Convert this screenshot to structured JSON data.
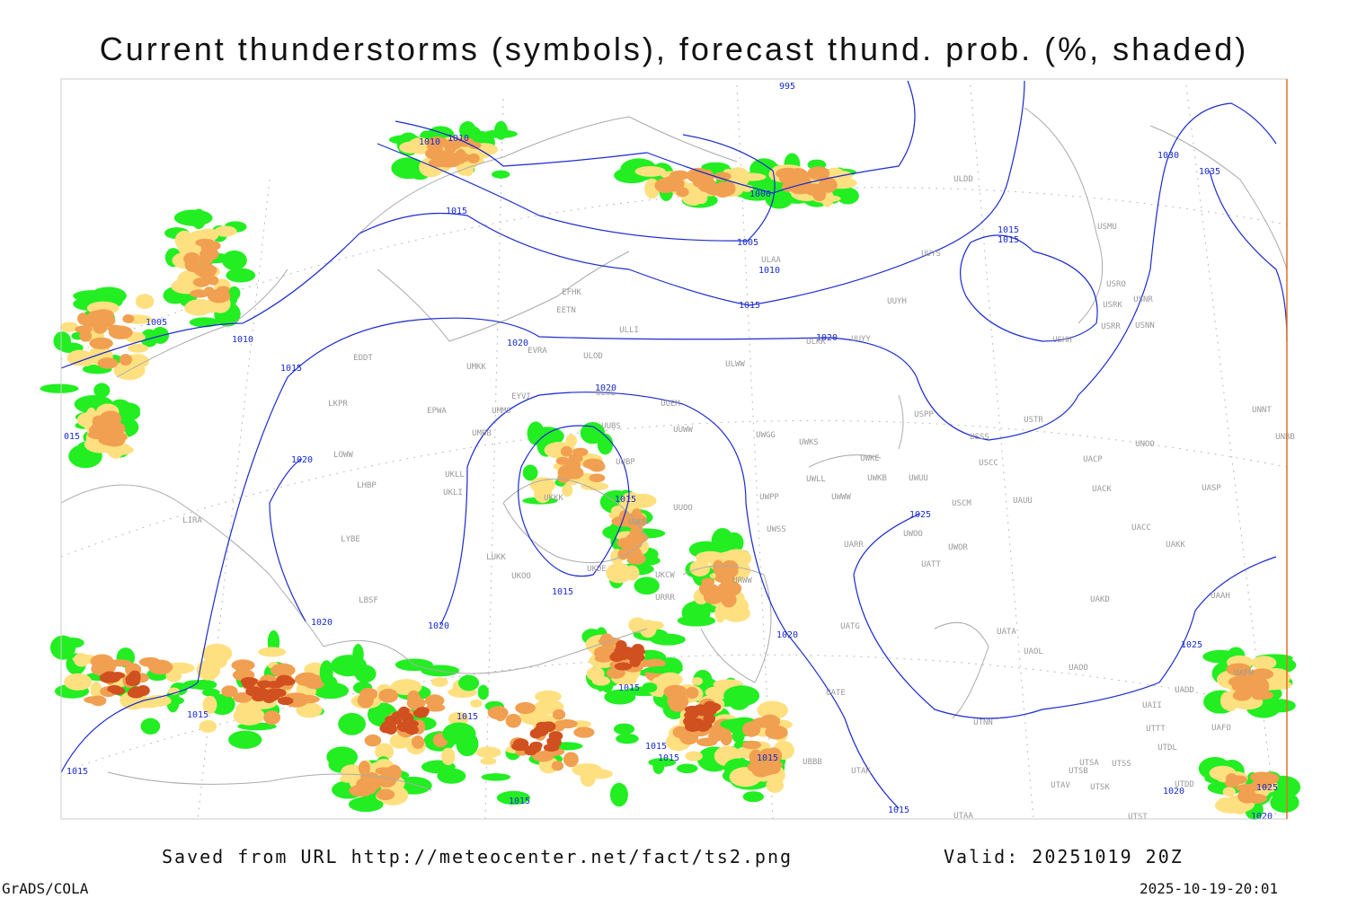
{
  "header": {
    "title": "Current thunderstorms (symbols), forecast thund. prob. (%, shaded)"
  },
  "isobar_labels": [
    "995",
    "1010",
    "1010",
    "1030",
    "1035",
    "1000",
    "1015",
    "1005",
    "1015",
    "1015",
    "1010",
    "1015",
    "1005",
    "1010",
    "1020",
    "1020",
    "1015",
    "1020",
    "015",
    "1020",
    "1015",
    "1025",
    "1015",
    "1020",
    "1020",
    "1020",
    "1025",
    "1015",
    "1015",
    "1015",
    "1015",
    "1015",
    "1015",
    "1015",
    "1015",
    "1015",
    "1020",
    "1025",
    "1020"
  ],
  "stations": [
    "ULDD",
    "USMU",
    "UUYS",
    "ULAA",
    "USRO",
    "USRK",
    "USNR",
    "UUYH",
    "USRR",
    "USNN",
    "USHH",
    "ULKK",
    "UUYY",
    "EFHK",
    "EETN",
    "EVRA",
    "ULOD",
    "ULLI",
    "EDDT",
    "UMKK",
    "ULWW",
    "EYVI",
    "UUEM",
    "ULOL",
    "EPWA",
    "UMMS",
    "LKPR",
    "UMBB",
    "UUBS",
    "UUWW",
    "UWGG",
    "UWKS",
    "USPP",
    "USTR",
    "UNNT",
    "UNBB",
    "USSS",
    "UNOO",
    "UWKE",
    "UWKB",
    "UWUU",
    "USCC",
    "UACP",
    "LOWW",
    "UKLL",
    "UUBP",
    "UKLI",
    "UWLL",
    "UWWW",
    "UWPP",
    "UACK",
    "UASP",
    "LHBP",
    "UKKK",
    "USCM",
    "UAUU",
    "UUOO",
    "UUOB",
    "UWSS",
    "UACC",
    "LIRA",
    "LYBE",
    "UWOO",
    "UWOR",
    "UARR",
    "UAKK",
    "LUKK",
    "UKOO",
    "UKDE",
    "URWW",
    "UKCW",
    "UATT",
    "URRR",
    "UAKD",
    "UAAH",
    "LBSF",
    "UATG",
    "UATA",
    "UAOL",
    "UAOO",
    "UAFM",
    "UADD",
    "UATE",
    "UAII",
    "UTNN",
    "UTTT",
    "UAFO",
    "UTDL",
    "UTSA",
    "UTSS",
    "UTSB",
    "UTAK",
    "UTAV",
    "UTSK",
    "UTDD",
    "UTAA",
    "UTST",
    "UBBB"
  ],
  "footer": {
    "source": "Saved from URL http://meteocenter.net/fact/ts2.png",
    "valid": "Valid: 20251019 20Z",
    "software": "GrADS/COLA",
    "timestamp": "2025-10-19-20:01"
  }
}
